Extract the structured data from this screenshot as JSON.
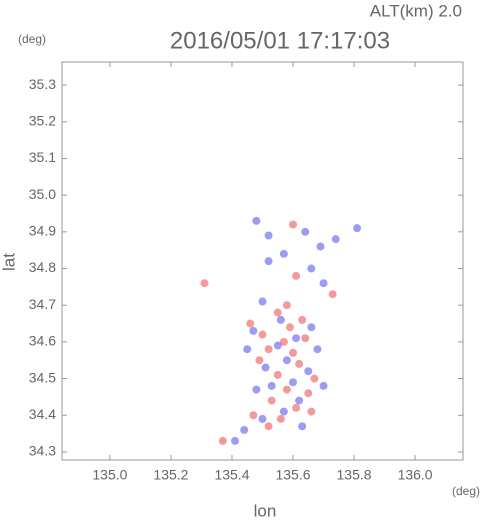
{
  "chart_data": {
    "type": "scatter",
    "title": "2016/05/01 17:17:03",
    "altitude": "ALT(km) 2.0",
    "xlabel": "lon",
    "ylabel": "lat",
    "xunit": "(deg)",
    "yunit": "(deg)",
    "xlim": [
      134.843,
      136.157
    ],
    "ylim": [
      34.278,
      35.363
    ],
    "xticks": [
      {
        "value": 135.0,
        "label": "135.0"
      },
      135.2,
      135.4,
      135.6,
      135.8,
      {
        "value": 136.0,
        "label": "136.0"
      }
    ],
    "yticks": [
      34.3,
      34.4,
      34.5,
      34.6,
      34.7,
      34.8,
      34.9,
      {
        "value": 35.0,
        "label": "35.0"
      },
      35.1,
      35.2,
      35.3
    ],
    "series": [
      {
        "color": "#e8595c",
        "x": [
          135.6,
          135.31,
          135.61,
          135.73,
          135.55,
          135.63,
          135.59,
          135.5,
          135.57,
          135.64,
          135.52,
          135.6,
          135.49,
          135.62,
          135.55,
          135.67,
          135.58,
          135.65,
          135.53,
          135.61,
          135.47,
          135.56,
          135.66,
          135.52,
          135.37,
          135.46,
          135.58
        ],
        "values": [
          34.92,
          34.76,
          34.78,
          34.73,
          34.68,
          34.66,
          34.64,
          34.62,
          34.6,
          34.61,
          34.58,
          34.57,
          34.55,
          34.54,
          34.51,
          34.5,
          34.47,
          34.46,
          34.44,
          34.42,
          34.4,
          34.39,
          34.41,
          34.37,
          34.33,
          34.65,
          34.7
        ]
      },
      {
        "color": "#5a5ae6",
        "x": [
          135.48,
          135.52,
          135.64,
          135.81,
          135.74,
          135.69,
          135.57,
          135.52,
          135.66,
          135.7,
          135.5,
          135.56,
          135.66,
          135.47,
          135.61,
          135.55,
          135.68,
          135.45,
          135.58,
          135.51,
          135.65,
          135.6,
          135.53,
          135.7,
          135.62,
          135.57,
          135.5,
          135.63,
          135.44,
          135.41,
          135.48
        ],
        "values": [
          34.93,
          34.89,
          34.9,
          34.91,
          34.88,
          34.86,
          34.84,
          34.82,
          34.8,
          34.76,
          34.71,
          34.66,
          34.64,
          34.63,
          34.61,
          34.59,
          34.58,
          34.58,
          34.55,
          34.53,
          34.52,
          34.49,
          34.48,
          34.48,
          34.44,
          34.41,
          34.39,
          34.37,
          34.36,
          34.33,
          34.47
        ]
      }
    ]
  }
}
